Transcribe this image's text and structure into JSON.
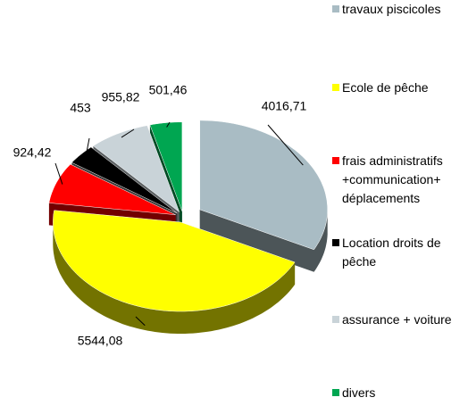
{
  "chart_data": {
    "type": "pie3d",
    "categories": [
      "travaux piscicoles",
      "Ecole de pêche",
      "frais administratifs +communication+ déplacements",
      "Location droits de pêche",
      "assurance + voiture",
      "divers"
    ],
    "values": [
      4016.71,
      5544.08,
      924.42,
      453,
      955.82,
      501.46
    ],
    "value_labels": [
      "4016,71",
      "5544,08",
      "924,42",
      "453",
      "955,82",
      "501,46"
    ],
    "colors": [
      "#a9bcc4",
      "#ffff00",
      "#ff0000",
      "#000000",
      "#c9d3d8",
      "#00a651"
    ],
    "legend": "right"
  }
}
